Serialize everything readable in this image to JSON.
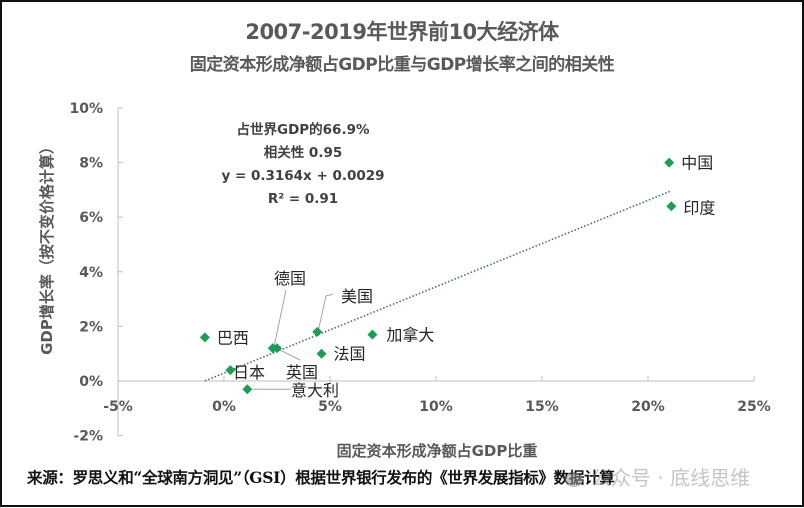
{
  "chart_data": {
    "type": "scatter",
    "title": "2007-2019年世界前10大经济体",
    "subtitle": "固定资本形成净额占GDP比重与GDP增长率之间的相关性",
    "xlabel": "固定资本形成净额占GDP比重",
    "ylabel": "GDP增长率（按不变价格计算）",
    "xlim": [
      -5,
      25
    ],
    "ylim": [
      -2,
      10
    ],
    "x_ticks": [
      "-5%",
      "0%",
      "5%",
      "10%",
      "15%",
      "20%",
      "25%"
    ],
    "x_tick_values": [
      -5,
      0,
      5,
      10,
      15,
      20,
      25
    ],
    "y_ticks": [
      "10%",
      "8%",
      "6%",
      "4%",
      "2%",
      "0%",
      "-2%"
    ],
    "y_tick_values": [
      10,
      8,
      6,
      4,
      2,
      0,
      -2
    ],
    "grid": false,
    "marker_color": "#1a9e55",
    "trendline_color": "#3f6a9a",
    "points": [
      {
        "label": "中国",
        "x": 21.0,
        "y": 8.0
      },
      {
        "label": "印度",
        "x": 21.1,
        "y": 6.4
      },
      {
        "label": "巴西",
        "x": -0.9,
        "y": 1.6
      },
      {
        "label": "日本",
        "x": 0.3,
        "y": 0.4
      },
      {
        "label": "意大利",
        "x": 1.1,
        "y": -0.3
      },
      {
        "label": "德国",
        "x": 2.3,
        "y": 1.2
      },
      {
        "label": "英国",
        "x": 2.5,
        "y": 1.2
      },
      {
        "label": "美国",
        "x": 4.4,
        "y": 1.8
      },
      {
        "label": "法国",
        "x": 4.6,
        "y": 1.0
      },
      {
        "label": "加拿大",
        "x": 7.0,
        "y": 1.7
      }
    ],
    "trendline": {
      "slope": 0.3164,
      "intercept": 0.29,
      "x_range": [
        -0.9,
        21.1
      ]
    },
    "annotation": {
      "lines": [
        "占世界GDP的66.9%",
        "相关性   0.95",
        "y = 0.3164x + 0.0029",
        "R² = 0.91"
      ]
    }
  },
  "source": "来源：罗思义和“全球南方洞见”（GSI）根据世界银行发布的《世界发展指标》数据计算",
  "watermark": "公众号 · 底线思维"
}
